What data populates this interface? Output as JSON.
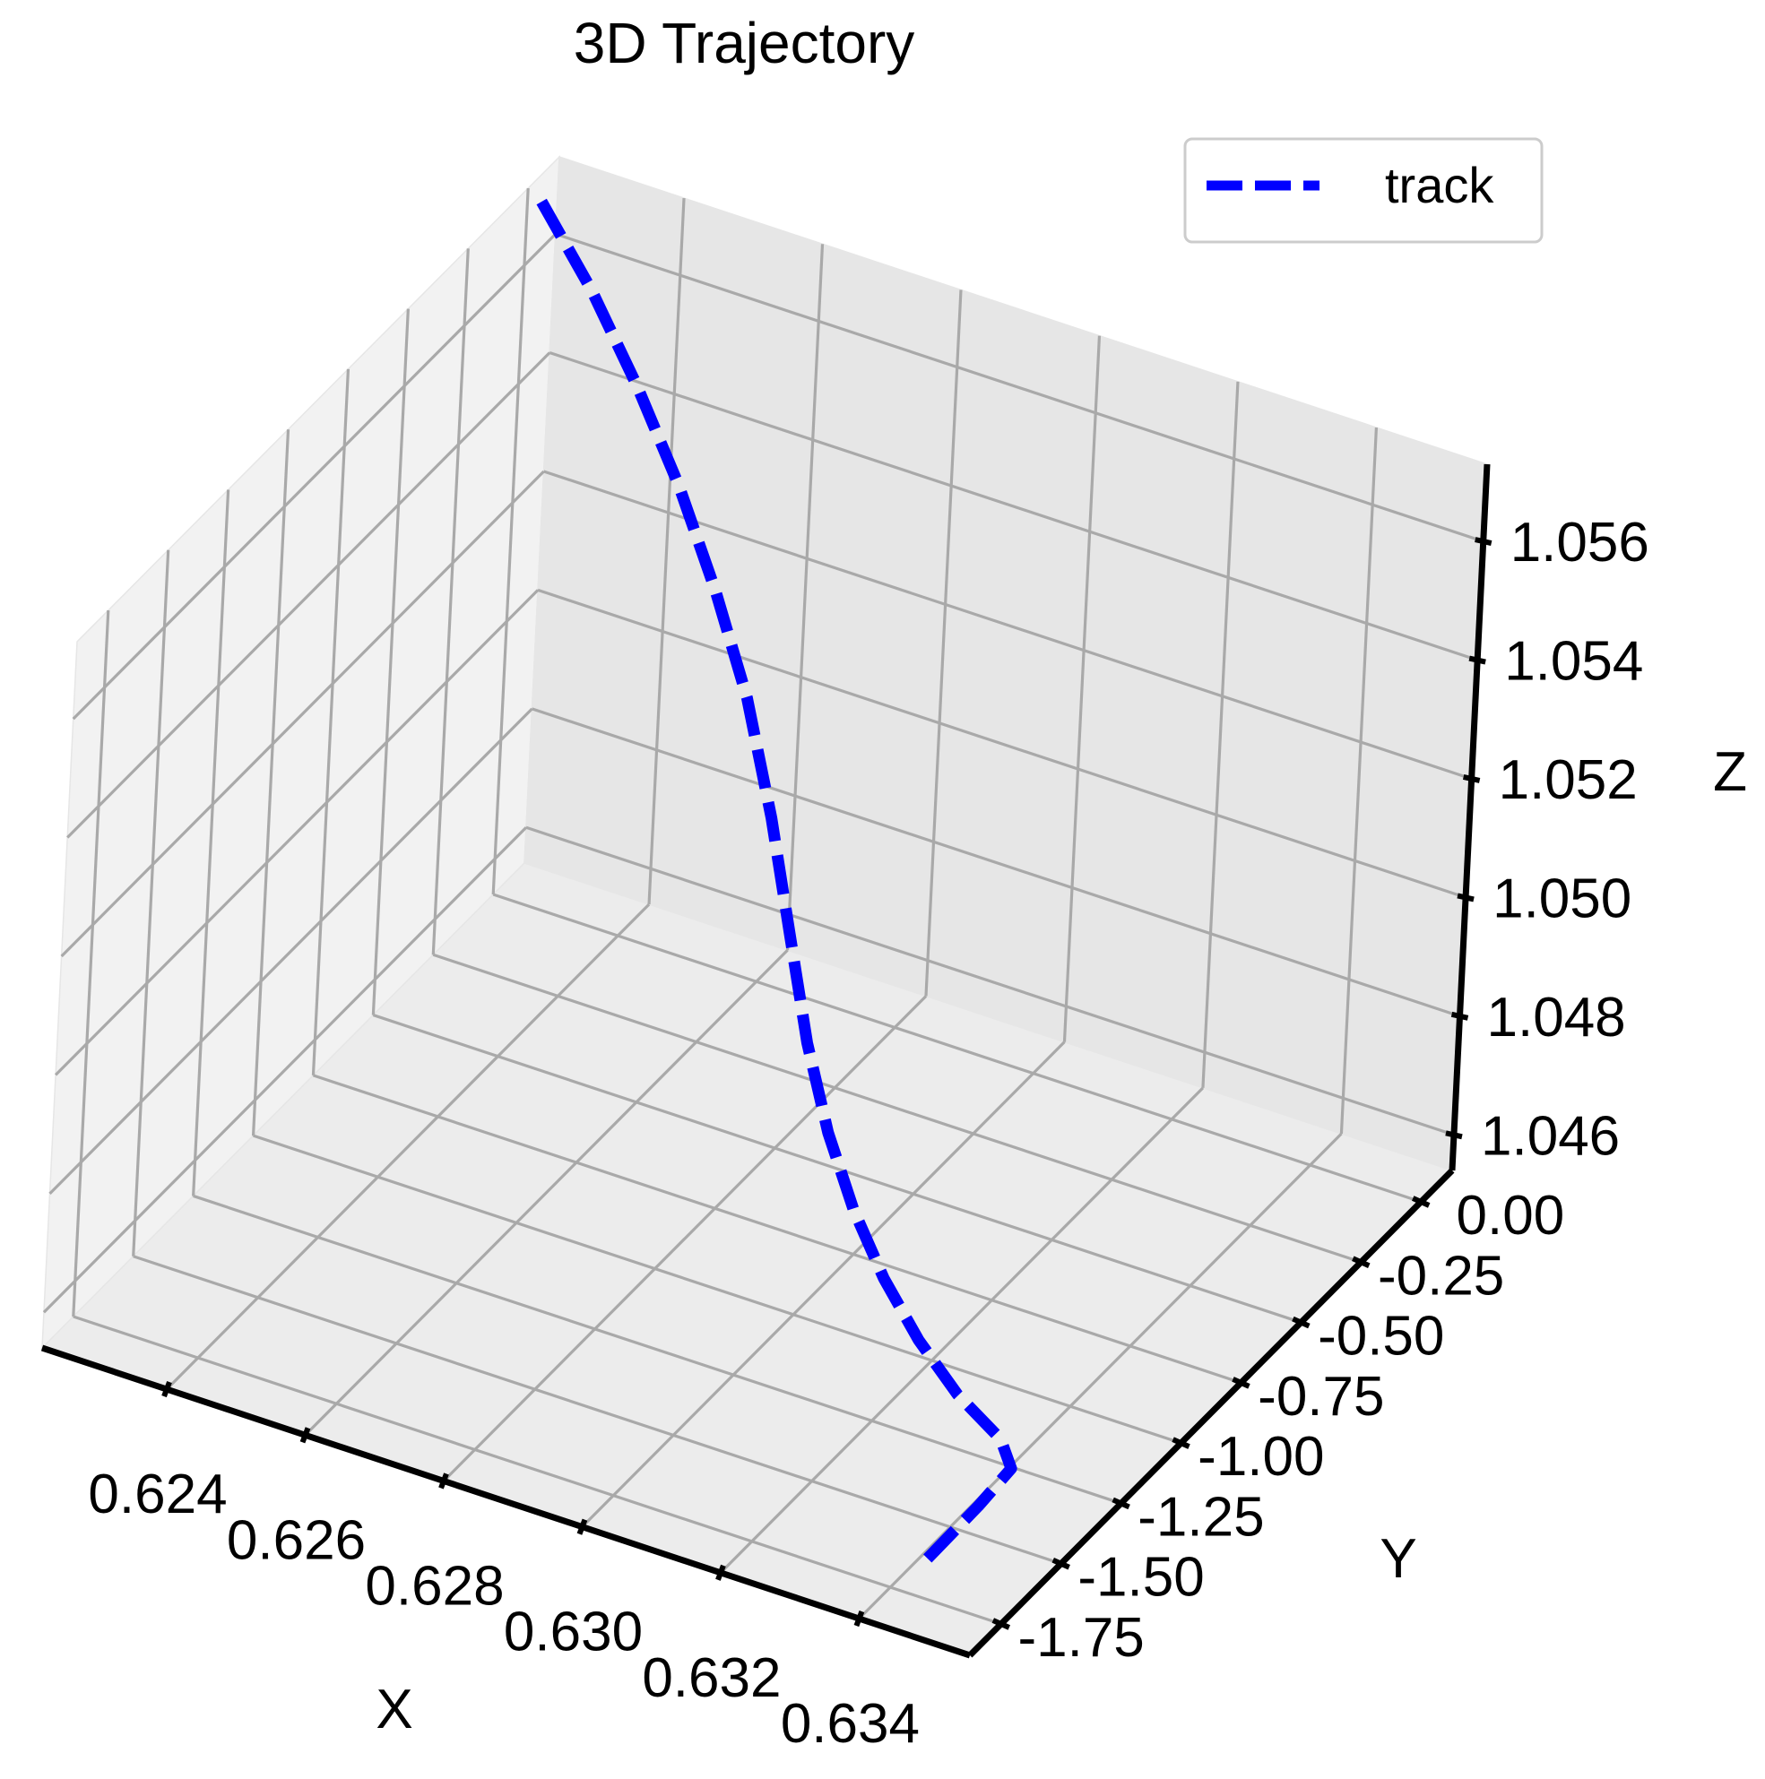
{
  "chart_data": {
    "type": "line",
    "projection": "3d",
    "title": "3D Trajectory",
    "xlabel": "X",
    "ylabel": "Y",
    "zlabel": "Z",
    "x_ticks": [
      "0.624",
      "0.626",
      "0.628",
      "0.630",
      "0.632",
      "0.634"
    ],
    "y_ticks": [
      "0.00",
      "-0.25",
      "-0.50",
      "-0.75",
      "-1.00",
      "-1.25",
      "-1.50",
      "-1.75"
    ],
    "z_ticks": [
      "1.046",
      "1.048",
      "1.050",
      "1.052",
      "1.054",
      "1.056"
    ],
    "xlim": [
      0.6222,
      0.6356
    ],
    "ylim": [
      -1.88,
      0.13
    ],
    "zlim": [
      1.0454,
      1.0573
    ],
    "grid": true,
    "legend_position": "top-right",
    "series": [
      {
        "name": "track",
        "color": "#0000ff",
        "line_style": "dashed",
        "x": [
          0.6224,
          0.6232,
          0.624,
          0.6248,
          0.6256,
          0.6264,
          0.6272,
          0.628,
          0.6288,
          0.6296,
          0.6304,
          0.6312,
          0.632,
          0.6328,
          0.6336,
          0.634,
          0.6342,
          0.6344
        ],
        "y": [
          0.0,
          -0.0083,
          -0.0345,
          -0.0765,
          -0.1405,
          -0.2255,
          -0.3395,
          -0.4795,
          -0.6275,
          -0.7635,
          -0.8825,
          -0.9815,
          -1.0625,
          -1.1265,
          -1.1745,
          -1.2455,
          -1.4435,
          -1.7555
        ],
        "z": [
          1.05715,
          1.056,
          1.0548,
          1.0536,
          1.0524,
          1.05125,
          1.05,
          1.0489,
          1.048,
          1.04735,
          1.04685,
          1.0464,
          1.046,
          1.04565,
          1.0454,
          1.04535,
          1.0456,
          1.0459
        ]
      }
    ]
  }
}
